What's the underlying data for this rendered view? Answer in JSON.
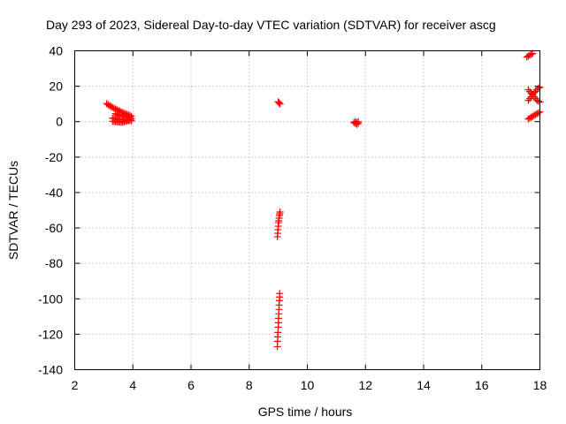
{
  "chart_data": {
    "type": "scatter",
    "title": "Day 293 of 2023, Sidereal Day-to-day VTEC variation (SDTVAR) for receiver ascg",
    "xlabel": "GPS time / hours",
    "ylabel": "SDTVAR / TECUs",
    "xlim": [
      2,
      18
    ],
    "ylim": [
      -140,
      40
    ],
    "xticks": [
      2,
      4,
      6,
      8,
      10,
      12,
      14,
      16,
      18
    ],
    "yticks": [
      -140,
      -120,
      -100,
      -80,
      -60,
      -40,
      -20,
      0,
      20,
      40
    ],
    "grid": true,
    "marker": "+",
    "series": [
      {
        "name": "SDTVAR",
        "color": "#ff0000",
        "points": [
          [
            3.1,
            10.2
          ],
          [
            3.15,
            9.6
          ],
          [
            3.2,
            9.0
          ],
          [
            3.25,
            8.5
          ],
          [
            3.3,
            8.0
          ],
          [
            3.35,
            7.6
          ],
          [
            3.4,
            7.1
          ],
          [
            3.45,
            6.7
          ],
          [
            3.5,
            6.3
          ],
          [
            3.55,
            5.9
          ],
          [
            3.6,
            5.5
          ],
          [
            3.65,
            5.1
          ],
          [
            3.7,
            4.7
          ],
          [
            3.75,
            4.4
          ],
          [
            3.8,
            4.1
          ],
          [
            3.85,
            3.8
          ],
          [
            3.9,
            3.5
          ],
          [
            3.4,
            4.5
          ],
          [
            3.45,
            4.2
          ],
          [
            3.5,
            3.9
          ],
          [
            3.55,
            3.6
          ],
          [
            3.6,
            3.4
          ],
          [
            3.65,
            3.2
          ],
          [
            3.7,
            3.0
          ],
          [
            3.75,
            2.8
          ],
          [
            3.8,
            2.6
          ],
          [
            3.85,
            2.4
          ],
          [
            3.9,
            2.3
          ],
          [
            3.3,
            2.0
          ],
          [
            3.35,
            1.8
          ],
          [
            3.4,
            1.6
          ],
          [
            3.45,
            1.5
          ],
          [
            3.5,
            1.3
          ],
          [
            3.55,
            1.2
          ],
          [
            3.6,
            1.1
          ],
          [
            3.65,
            1.0
          ],
          [
            3.7,
            1.0
          ],
          [
            3.75,
            0.9
          ],
          [
            3.8,
            0.9
          ],
          [
            3.85,
            0.8
          ],
          [
            3.9,
            0.8
          ],
          [
            3.3,
            0.2
          ],
          [
            3.35,
            0.1
          ],
          [
            3.4,
            0.0
          ],
          [
            3.45,
            -0.1
          ],
          [
            3.5,
            -0.2
          ],
          [
            3.55,
            -0.2
          ],
          [
            3.6,
            -0.3
          ],
          [
            3.65,
            -0.3
          ],
          [
            3.7,
            0.0
          ],
          [
            3.75,
            0.2
          ],
          [
            3.8,
            0.4
          ],
          [
            3.85,
            0.6
          ],
          [
            3.9,
            0.8
          ],
          [
            3.95,
            3.0
          ],
          [
            3.95,
            1.5
          ],
          [
            3.95,
            0.5
          ],
          [
            9.0,
            11.2
          ],
          [
            9.03,
            10.6
          ],
          [
            9.06,
            10.0
          ],
          [
            8.97,
            -65
          ],
          [
            8.98,
            -63
          ],
          [
            8.99,
            -61
          ],
          [
            9.0,
            -59
          ],
          [
            9.01,
            -57
          ],
          [
            9.02,
            -56
          ],
          [
            9.03,
            -54.5
          ],
          [
            9.04,
            -53
          ],
          [
            9.05,
            -52
          ],
          [
            9.06,
            -51
          ],
          [
            8.97,
            -127
          ],
          [
            8.975,
            -124
          ],
          [
            8.98,
            -121.5
          ],
          [
            8.99,
            -119
          ],
          [
            9.0,
            -116
          ],
          [
            9.005,
            -113.5
          ],
          [
            9.01,
            -111
          ],
          [
            9.02,
            -108.5
          ],
          [
            9.025,
            -106
          ],
          [
            9.03,
            -103.5
          ],
          [
            9.04,
            -101
          ],
          [
            9.045,
            -99
          ],
          [
            9.05,
            -97
          ],
          [
            11.6,
            -0.5
          ],
          [
            11.65,
            -1.0
          ],
          [
            11.7,
            -1.5
          ],
          [
            11.75,
            -1.0
          ],
          [
            11.65,
            0.0
          ],
          [
            11.7,
            -0.5
          ],
          [
            11.75,
            0.0
          ],
          [
            17.55,
            36.5
          ],
          [
            17.6,
            37.0
          ],
          [
            17.65,
            37.5
          ],
          [
            17.7,
            38.0
          ],
          [
            17.75,
            38.5
          ],
          [
            17.6,
            18.0
          ],
          [
            17.65,
            17.0
          ],
          [
            17.7,
            16.0
          ],
          [
            17.75,
            15.0
          ],
          [
            17.8,
            14.0
          ],
          [
            17.85,
            13.0
          ],
          [
            17.9,
            12.0
          ],
          [
            17.95,
            11.5
          ],
          [
            18.0,
            11.0
          ],
          [
            17.6,
            12.0
          ],
          [
            17.65,
            13.0
          ],
          [
            17.7,
            14.0
          ],
          [
            17.75,
            15.5
          ],
          [
            17.8,
            16.5
          ],
          [
            17.85,
            17.0
          ],
          [
            17.9,
            18.0
          ],
          [
            17.95,
            19.0
          ],
          [
            18.0,
            19.5
          ],
          [
            17.6,
            1.5
          ],
          [
            17.65,
            2.0
          ],
          [
            17.7,
            2.5
          ],
          [
            17.75,
            3.0
          ],
          [
            17.8,
            3.5
          ],
          [
            17.85,
            4.0
          ],
          [
            17.9,
            4.5
          ],
          [
            17.95,
            5.0
          ],
          [
            18.0,
            5.5
          ]
        ]
      }
    ]
  }
}
